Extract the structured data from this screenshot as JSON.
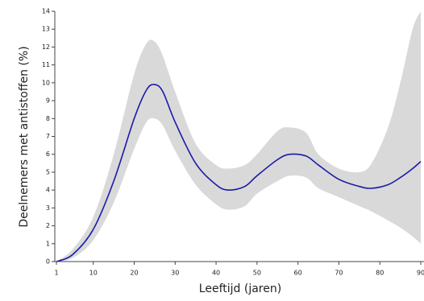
{
  "chart_data": {
    "type": "line",
    "ylabel": "Deelnemers met antistoffen (%)",
    "xlabel": "Leeftijd (jaren)",
    "x": [
      1,
      5,
      10,
      15,
      20,
      23,
      25,
      27,
      30,
      35,
      40,
      43,
      47,
      50,
      55,
      58,
      62,
      65,
      70,
      75,
      78,
      82,
      85,
      88,
      90
    ],
    "series": [
      {
        "color": "#1a1aa8",
        "values": [
          0,
          0.4,
          1.8,
          4.5,
          8.0,
          9.6,
          9.9,
          9.5,
          7.8,
          5.5,
          4.3,
          4.0,
          4.2,
          4.8,
          5.7,
          6.0,
          5.9,
          5.4,
          4.6,
          4.2,
          4.1,
          4.3,
          4.7,
          5.2,
          5.6
        ]
      }
    ],
    "band": {
      "color": "#d9d9d9",
      "upper": [
        0,
        0.7,
        2.5,
        6.0,
        10.5,
        12.2,
        12.3,
        11.5,
        9.5,
        6.6,
        5.4,
        5.2,
        5.4,
        6.0,
        7.3,
        7.5,
        7.2,
        6.0,
        5.2,
        5.0,
        5.5,
        7.5,
        10.0,
        13.0,
        14.0
      ],
      "lower": [
        0,
        0.2,
        1.2,
        3.3,
        6.3,
        7.8,
        8.0,
        7.6,
        6.2,
        4.3,
        3.2,
        2.9,
        3.1,
        3.8,
        4.5,
        4.8,
        4.7,
        4.1,
        3.6,
        3.1,
        2.8,
        2.3,
        1.9,
        1.4,
        1.0
      ]
    },
    "xlim": [
      1,
      90
    ],
    "ylim": [
      0,
      14
    ],
    "xticks": [
      1,
      10,
      20,
      30,
      40,
      50,
      60,
      70,
      80,
      90
    ],
    "yticks": [
      0,
      1,
      2,
      3,
      4,
      5,
      6,
      7,
      8,
      9,
      10,
      11,
      12,
      13,
      14
    ]
  }
}
